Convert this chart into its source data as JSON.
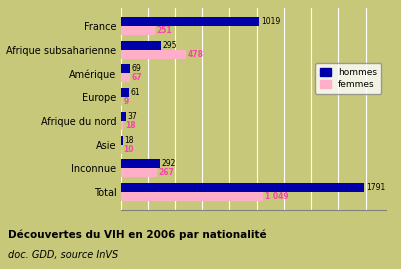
{
  "categories": [
    "France",
    "Afrique subsaharienne",
    "Amérique",
    "Europe",
    "Afrique du nord",
    "Asie",
    "Inconnue",
    "Total"
  ],
  "hommes": [
    1019,
    295,
    69,
    61,
    37,
    18,
    292,
    1791
  ],
  "femmes": [
    251,
    478,
    67,
    9,
    18,
    10,
    267,
    1049
  ],
  "hommes_labels": [
    "1019",
    "295",
    "69",
    "61",
    "37",
    "18",
    "292",
    "1791"
  ],
  "femmes_labels": [
    "251",
    "478",
    "67",
    "9",
    "18",
    "10",
    "267",
    "1 049"
  ],
  "hommes_color": "#0000AA",
  "femmes_color": "#FFB0C8",
  "femmes_label_color": "#FF40B0",
  "bg_color": "#C8C87A",
  "fig_color": "#C8C87A",
  "title": "Découvertes du VIH en 2006 par nationalité",
  "subtitle": "doc. GDD, source InVS",
  "xmax": 1950,
  "bar_height": 0.38,
  "legend_hommes": "hommes",
  "legend_femmes": "femmes"
}
